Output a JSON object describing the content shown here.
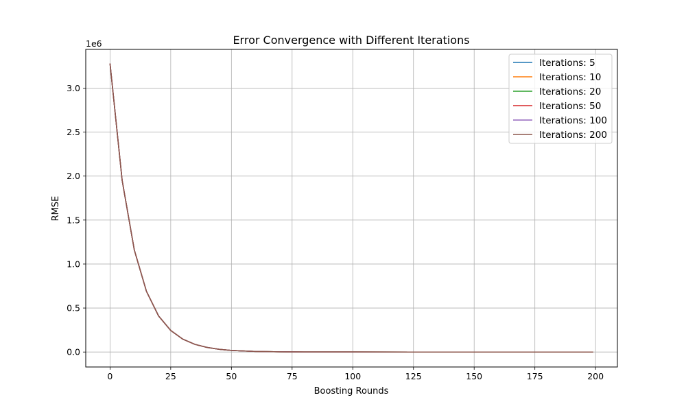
{
  "chart_data": {
    "type": "line",
    "title": "Error Convergence with Different Iterations",
    "xlabel": "Boosting Rounds",
    "ylabel": "RMSE",
    "y_offset_label": "1e6",
    "xlim": [
      -10,
      209
    ],
    "ylim": [
      -170000,
      3440000
    ],
    "x_ticks": [
      0,
      25,
      50,
      75,
      100,
      125,
      150,
      175,
      200
    ],
    "x_tick_labels": [
      "0",
      "25",
      "50",
      "75",
      "100",
      "125",
      "150",
      "175",
      "200"
    ],
    "y_ticks": [
      0,
      500000,
      1000000,
      1500000,
      2000000,
      2500000,
      3000000
    ],
    "y_tick_labels": [
      "0.0",
      "0.5",
      "1.0",
      "1.5",
      "2.0",
      "2.5",
      "3.0"
    ],
    "grid": true,
    "legend_position": "top-right",
    "series": [
      {
        "name": "Iterations: 5",
        "color": "#1f77b4",
        "x": [
          0,
          5,
          10,
          15,
          20,
          25,
          30,
          35,
          40,
          45,
          50,
          60,
          70,
          80,
          90,
          100,
          125,
          150,
          175,
          199
        ],
        "y": [
          3280000,
          1950000,
          1160000,
          690000,
          410000,
          245000,
          146000,
          87000,
          52000,
          31000,
          18000,
          6500,
          2300,
          800,
          300,
          100,
          10,
          0,
          0,
          0
        ]
      },
      {
        "name": "Iterations: 10",
        "color": "#ff7f0e",
        "x": [
          0,
          5,
          10,
          15,
          20,
          25,
          30,
          35,
          40,
          45,
          50,
          60,
          70,
          80,
          90,
          100,
          125,
          150,
          175,
          199
        ],
        "y": [
          3280000,
          1950000,
          1160000,
          690000,
          410000,
          245000,
          146000,
          87000,
          52000,
          31000,
          18000,
          6500,
          2300,
          800,
          300,
          100,
          10,
          0,
          0,
          0
        ]
      },
      {
        "name": "Iterations: 20",
        "color": "#2ca02c",
        "x": [
          0,
          5,
          10,
          15,
          20,
          25,
          30,
          35,
          40,
          45,
          50,
          60,
          70,
          80,
          90,
          100,
          125,
          150,
          175,
          199
        ],
        "y": [
          3280000,
          1950000,
          1160000,
          690000,
          410000,
          245000,
          146000,
          87000,
          52000,
          31000,
          18000,
          6500,
          2300,
          800,
          300,
          100,
          10,
          0,
          0,
          0
        ]
      },
      {
        "name": "Iterations: 50",
        "color": "#d62728",
        "x": [
          0,
          5,
          10,
          15,
          20,
          25,
          30,
          35,
          40,
          45,
          50,
          60,
          70,
          80,
          90,
          100,
          125,
          150,
          175,
          199
        ],
        "y": [
          3280000,
          1950000,
          1160000,
          690000,
          410000,
          245000,
          146000,
          87000,
          52000,
          31000,
          18000,
          6500,
          2300,
          800,
          300,
          100,
          10,
          0,
          0,
          0
        ]
      },
      {
        "name": "Iterations: 100",
        "color": "#9467bd",
        "x": [
          0,
          5,
          10,
          15,
          20,
          25,
          30,
          35,
          40,
          45,
          50,
          60,
          70,
          80,
          90,
          100,
          125,
          150,
          175,
          199
        ],
        "y": [
          3280000,
          1950000,
          1160000,
          690000,
          410000,
          245000,
          146000,
          87000,
          52000,
          31000,
          18000,
          6500,
          2300,
          800,
          300,
          100,
          10,
          0,
          0,
          0
        ]
      },
      {
        "name": "Iterations: 200",
        "color": "#8c564b",
        "x": [
          0,
          5,
          10,
          15,
          20,
          25,
          30,
          35,
          40,
          45,
          50,
          60,
          70,
          80,
          90,
          100,
          125,
          150,
          175,
          199
        ],
        "y": [
          3280000,
          1950000,
          1160000,
          690000,
          410000,
          245000,
          146000,
          87000,
          52000,
          31000,
          18000,
          6500,
          2300,
          800,
          300,
          100,
          10,
          0,
          0,
          0
        ]
      }
    ]
  }
}
